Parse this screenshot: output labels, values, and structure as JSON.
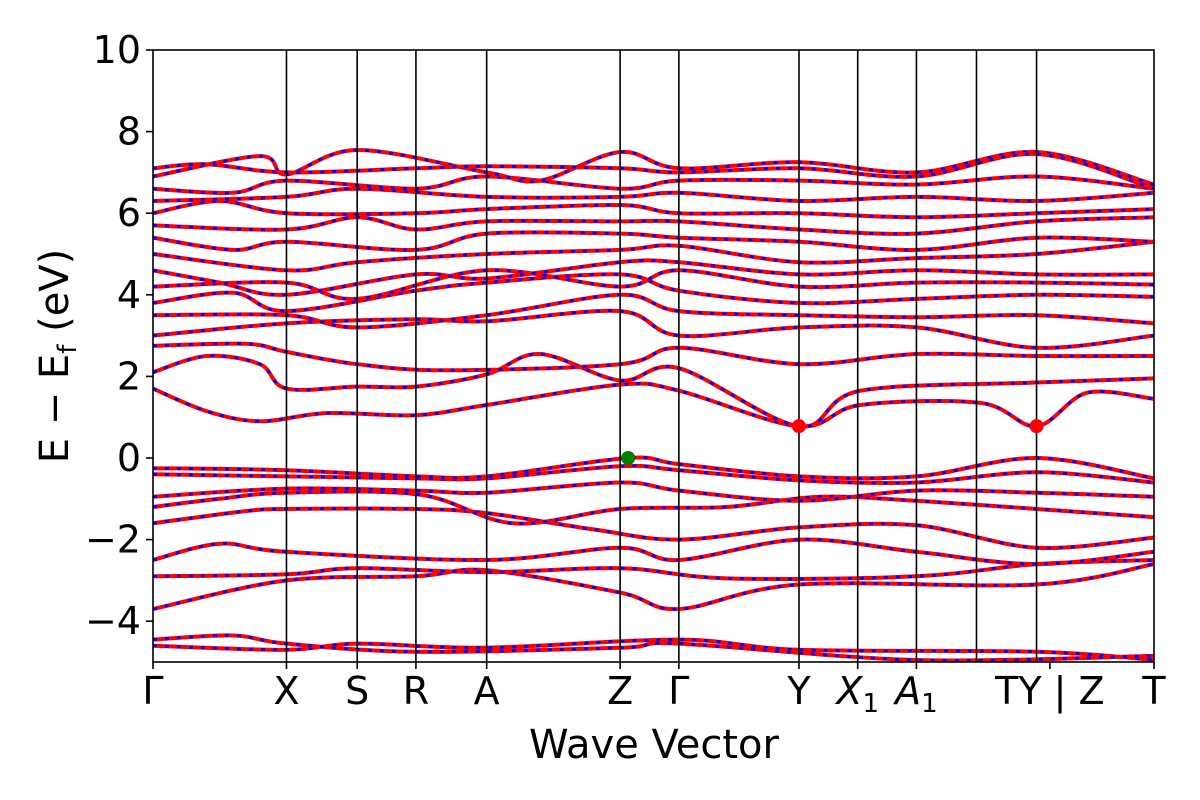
{
  "chart_data": {
    "type": "line",
    "title": "",
    "xlabel": "Wave Vector",
    "ylabel_parts": {
      "main": "E − E",
      "sub": "f",
      "tail": " (eV)"
    },
    "ylim": [
      -5,
      10
    ],
    "yticks": [
      -4,
      -2,
      0,
      2,
      4,
      6,
      8,
      10
    ],
    "ytick_labels": [
      "−4",
      "−2",
      "0",
      "2",
      "4",
      "6",
      "8",
      "10"
    ],
    "k_points": [
      {
        "label": "Γ",
        "sub": "",
        "x": 0
      },
      {
        "label": "X",
        "sub": "",
        "x": 1.0
      },
      {
        "label": "S",
        "sub": "",
        "x": 1.53
      },
      {
        "label": "R",
        "sub": "",
        "x": 1.97
      },
      {
        "label": "A",
        "sub": "",
        "x": 2.5
      },
      {
        "label": "Z",
        "sub": "",
        "x": 3.5
      },
      {
        "label": "Γ",
        "sub": "",
        "x": 3.94
      },
      {
        "label": "Y",
        "sub": "",
        "x": 4.84
      },
      {
        "label": "X",
        "sub": "1",
        "x": 5.28
      },
      {
        "label": "A",
        "sub": "1",
        "x": 5.72
      },
      {
        "label": "TY | Z",
        "sub": "",
        "x": 6.72
      },
      {
        "label": "T",
        "sub": "",
        "x": 7.5
      }
    ],
    "vlines_x": [
      1.0,
      1.53,
      1.97,
      2.5,
      3.5,
      3.94,
      4.84,
      5.28,
      5.72,
      6.17,
      6.62
    ],
    "series_colors": {
      "spin_up": "#ff0000",
      "spin_down": "#0000ff"
    },
    "conduction_band_minimum": [
      {
        "x": 4.84,
        "y": 0.78,
        "color": "#ff0000"
      },
      {
        "x": 6.62,
        "y": 0.78,
        "color": "#ff0000"
      }
    ],
    "valence_band_maximum": [
      {
        "x": 3.56,
        "y": 0.0,
        "color": "#008000"
      }
    ],
    "bands": [
      [
        [
          0,
          -4.6
        ],
        [
          1,
          -4.7
        ],
        [
          1.53,
          -4.55
        ],
        [
          2.5,
          -4.65
        ],
        [
          3.94,
          -4.45
        ],
        [
          4.84,
          -4.7
        ],
        [
          6.62,
          -4.75
        ],
        [
          7.5,
          -4.95
        ]
      ],
      [
        [
          0,
          -4.45
        ],
        [
          0.6,
          -4.35
        ],
        [
          1,
          -4.55
        ],
        [
          1.97,
          -4.75
        ],
        [
          3.5,
          -4.65
        ],
        [
          3.94,
          -4.55
        ],
        [
          5.72,
          -4.95
        ],
        [
          7.5,
          -4.85
        ]
      ],
      [
        [
          0,
          -3.7
        ],
        [
          1,
          -3.0
        ],
        [
          1.97,
          -2.9
        ],
        [
          2.5,
          -2.75
        ],
        [
          3.5,
          -3.3
        ],
        [
          3.94,
          -3.7
        ],
        [
          4.84,
          -3.1
        ],
        [
          6.62,
          -3.1
        ],
        [
          7.5,
          -2.6
        ]
      ],
      [
        [
          0,
          -2.9
        ],
        [
          1,
          -2.85
        ],
        [
          1.53,
          -2.7
        ],
        [
          2.5,
          -2.8
        ],
        [
          3.5,
          -2.7
        ],
        [
          4.3,
          -2.95
        ],
        [
          5.72,
          -2.9
        ],
        [
          6.62,
          -2.6
        ],
        [
          7.5,
          -2.5
        ]
      ],
      [
        [
          0,
          -2.5
        ],
        [
          0.5,
          -2.1
        ],
        [
          1,
          -2.3
        ],
        [
          2.5,
          -2.5
        ],
        [
          3.5,
          -2.2
        ],
        [
          3.94,
          -2.5
        ],
        [
          4.84,
          -2.0
        ],
        [
          5.72,
          -2.3
        ],
        [
          6.62,
          -2.6
        ],
        [
          7.5,
          -2.3
        ]
      ],
      [
        [
          0,
          -1.6
        ],
        [
          0.7,
          -1.3
        ],
        [
          1,
          -1.25
        ],
        [
          1.97,
          -1.25
        ],
        [
          2.5,
          -1.35
        ],
        [
          3.3,
          -1.75
        ],
        [
          3.94,
          -2.0
        ],
        [
          4.84,
          -1.7
        ],
        [
          5.72,
          -1.65
        ],
        [
          6.62,
          -2.2
        ],
        [
          7.5,
          -1.95
        ]
      ],
      [
        [
          0,
          -1.2
        ],
        [
          0.5,
          -1.0
        ],
        [
          1,
          -0.85
        ],
        [
          2.0,
          -0.9
        ],
        [
          2.7,
          -1.6
        ],
        [
          3.5,
          -1.25
        ],
        [
          4.3,
          -1.2
        ],
        [
          5.0,
          -0.95
        ],
        [
          5.72,
          -1.05
        ],
        [
          6.62,
          -1.25
        ],
        [
          7.5,
          -1.45
        ]
      ],
      [
        [
          0,
          -0.95
        ],
        [
          1,
          -0.75
        ],
        [
          1.97,
          -0.8
        ],
        [
          2.5,
          -0.85
        ],
        [
          3.5,
          -0.6
        ],
        [
          3.94,
          -0.8
        ],
        [
          4.84,
          -1.05
        ],
        [
          5.72,
          -0.8
        ],
        [
          6.62,
          -0.85
        ],
        [
          7.5,
          -0.95
        ]
      ],
      [
        [
          0,
          -0.4
        ],
        [
          1,
          -0.45
        ],
        [
          1.97,
          -0.5
        ],
        [
          2.5,
          -0.5
        ],
        [
          3.5,
          -0.2
        ],
        [
          3.94,
          -0.3
        ],
        [
          4.84,
          -0.55
        ],
        [
          5.72,
          -0.6
        ],
        [
          6.62,
          -0.35
        ],
        [
          7.5,
          -0.6
        ]
      ],
      [
        [
          0,
          -0.25
        ],
        [
          1,
          -0.3
        ],
        [
          1.97,
          -0.45
        ],
        [
          2.5,
          -0.45
        ],
        [
          3.56,
          0.0
        ],
        [
          3.94,
          -0.15
        ],
        [
          4.84,
          -0.45
        ],
        [
          5.72,
          -0.45
        ],
        [
          6.62,
          0.0
        ],
        [
          7.5,
          -0.5
        ]
      ],
      [
        [
          0,
          1.7
        ],
        [
          0.4,
          1.15
        ],
        [
          0.8,
          0.9
        ],
        [
          1.3,
          1.1
        ],
        [
          1.97,
          1.05
        ],
        [
          2.5,
          1.3
        ],
        [
          3.5,
          1.8
        ],
        [
          3.94,
          1.65
        ],
        [
          4.84,
          0.78
        ],
        [
          5.3,
          1.3
        ],
        [
          6.2,
          1.35
        ],
        [
          6.62,
          0.78
        ],
        [
          7.0,
          1.6
        ],
        [
          7.5,
          1.45
        ]
      ],
      [
        [
          0,
          2.1
        ],
        [
          0.4,
          2.5
        ],
        [
          0.8,
          2.3
        ],
        [
          1.0,
          1.7
        ],
        [
          1.53,
          1.75
        ],
        [
          1.97,
          1.75
        ],
        [
          2.5,
          2.05
        ],
        [
          2.9,
          2.55
        ],
        [
          3.5,
          1.9
        ],
        [
          3.94,
          2.2
        ],
        [
          4.84,
          0.78
        ],
        [
          5.3,
          1.65
        ],
        [
          6.62,
          1.85
        ],
        [
          7.5,
          1.95
        ]
      ],
      [
        [
          0,
          2.75
        ],
        [
          0.7,
          2.8
        ],
        [
          1,
          2.6
        ],
        [
          1.53,
          2.3
        ],
        [
          2.2,
          2.15
        ],
        [
          3.5,
          2.3
        ],
        [
          3.94,
          2.7
        ],
        [
          4.84,
          2.3
        ],
        [
          5.72,
          2.55
        ],
        [
          6.62,
          2.5
        ],
        [
          7.5,
          2.5
        ]
      ],
      [
        [
          0,
          3.0
        ],
        [
          1,
          3.3
        ],
        [
          1.97,
          3.4
        ],
        [
          2.5,
          3.35
        ],
        [
          3.5,
          3.6
        ],
        [
          3.94,
          3.0
        ],
        [
          4.84,
          3.2
        ],
        [
          5.72,
          3.2
        ],
        [
          6.62,
          2.7
        ],
        [
          7.5,
          3.0
        ]
      ],
      [
        [
          0,
          3.5
        ],
        [
          1,
          3.5
        ],
        [
          1.53,
          3.2
        ],
        [
          2.5,
          3.5
        ],
        [
          3.5,
          4.0
        ],
        [
          3.94,
          3.6
        ],
        [
          4.84,
          3.5
        ],
        [
          5.72,
          3.45
        ],
        [
          6.62,
          3.5
        ],
        [
          7.5,
          3.3
        ]
      ],
      [
        [
          0,
          3.8
        ],
        [
          0.6,
          4.05
        ],
        [
          1,
          3.6
        ],
        [
          1.97,
          4.1
        ],
        [
          2.5,
          4.3
        ],
        [
          3.5,
          4.5
        ],
        [
          3.94,
          4.1
        ],
        [
          4.84,
          3.8
        ],
        [
          5.72,
          3.9
        ],
        [
          6.62,
          4.0
        ],
        [
          7.5,
          3.95
        ]
      ],
      [
        [
          0,
          4.2
        ],
        [
          1,
          4.3
        ],
        [
          1.53,
          3.9
        ],
        [
          2.5,
          4.6
        ],
        [
          3.5,
          4.2
        ],
        [
          3.94,
          4.6
        ],
        [
          4.84,
          4.2
        ],
        [
          5.72,
          4.3
        ],
        [
          6.62,
          4.3
        ],
        [
          7.5,
          4.25
        ]
      ],
      [
        [
          0,
          4.6
        ],
        [
          0.5,
          4.3
        ],
        [
          1,
          4.0
        ],
        [
          1.97,
          4.5
        ],
        [
          2.5,
          4.4
        ],
        [
          3.5,
          4.8
        ],
        [
          3.94,
          4.8
        ],
        [
          4.84,
          4.5
        ],
        [
          5.72,
          4.6
        ],
        [
          6.62,
          4.5
        ],
        [
          7.5,
          4.5
        ]
      ],
      [
        [
          0,
          5.0
        ],
        [
          1,
          4.6
        ],
        [
          1.53,
          4.8
        ],
        [
          2.5,
          5.0
        ],
        [
          3.5,
          5.1
        ],
        [
          3.94,
          5.2
        ],
        [
          4.84,
          4.8
        ],
        [
          5.72,
          4.9
        ],
        [
          6.62,
          5.0
        ],
        [
          7.5,
          5.3
        ]
      ],
      [
        [
          0,
          5.4
        ],
        [
          0.6,
          5.1
        ],
        [
          1,
          5.3
        ],
        [
          1.97,
          5.1
        ],
        [
          2.5,
          5.5
        ],
        [
          3.5,
          5.5
        ],
        [
          3.94,
          5.4
        ],
        [
          4.84,
          5.3
        ],
        [
          5.72,
          5.1
        ],
        [
          6.62,
          5.4
        ],
        [
          7.5,
          5.3
        ]
      ],
      [
        [
          0,
          5.7
        ],
        [
          1,
          5.6
        ],
        [
          1.53,
          5.9
        ],
        [
          1.97,
          5.6
        ],
        [
          2.5,
          5.8
        ],
        [
          3.5,
          5.8
        ],
        [
          3.94,
          5.8
        ],
        [
          4.84,
          5.6
        ],
        [
          5.72,
          5.5
        ],
        [
          6.62,
          5.8
        ],
        [
          7.5,
          5.9
        ]
      ],
      [
        [
          0,
          6.0
        ],
        [
          0.5,
          6.3
        ],
        [
          1,
          6.0
        ],
        [
          1.97,
          6.0
        ],
        [
          2.5,
          6.1
        ],
        [
          3.5,
          6.2
        ],
        [
          3.94,
          6.0
        ],
        [
          4.84,
          6.0
        ],
        [
          5.72,
          5.9
        ],
        [
          6.62,
          6.0
        ],
        [
          7.5,
          6.1
        ]
      ],
      [
        [
          0,
          6.3
        ],
        [
          1,
          6.4
        ],
        [
          1.53,
          6.6
        ],
        [
          2.5,
          6.4
        ],
        [
          3.5,
          6.4
        ],
        [
          3.94,
          6.5
        ],
        [
          4.84,
          6.3
        ],
        [
          5.72,
          6.4
        ],
        [
          6.62,
          6.3
        ],
        [
          7.5,
          6.5
        ]
      ],
      [
        [
          0,
          6.6
        ],
        [
          0.6,
          6.5
        ],
        [
          1,
          6.8
        ],
        [
          1.97,
          6.6
        ],
        [
          2.5,
          6.9
        ],
        [
          3.5,
          6.6
        ],
        [
          3.94,
          6.8
        ],
        [
          4.84,
          6.8
        ],
        [
          5.72,
          6.7
        ],
        [
          6.62,
          6.9
        ],
        [
          7.5,
          6.6
        ]
      ],
      [
        [
          0,
          6.9
        ],
        [
          0.8,
          7.4
        ],
        [
          1,
          6.95
        ],
        [
          1.53,
          7.55
        ],
        [
          2.5,
          7.0
        ],
        [
          2.9,
          6.8
        ],
        [
          3.5,
          7.5
        ],
        [
          3.94,
          7.1
        ],
        [
          4.84,
          7.25
        ],
        [
          5.72,
          7.0
        ],
        [
          6.62,
          7.5
        ],
        [
          7.5,
          6.7
        ]
      ],
      [
        [
          0,
          7.1
        ],
        [
          0.4,
          7.2
        ],
        [
          1,
          7.0
        ],
        [
          1.97,
          7.1
        ],
        [
          2.5,
          7.15
        ],
        [
          3.5,
          7.1
        ],
        [
          3.94,
          7.0
        ],
        [
          4.84,
          7.1
        ],
        [
          5.72,
          6.9
        ],
        [
          6.62,
          7.45
        ],
        [
          7.5,
          6.6
        ]
      ]
    ]
  }
}
